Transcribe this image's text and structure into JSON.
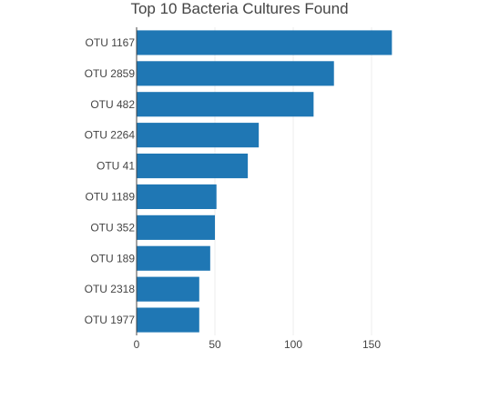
{
  "chart_data": {
    "type": "bar",
    "orientation": "horizontal",
    "title": "Top 10 Bacteria Cultures Found",
    "xlabel": "",
    "ylabel": "",
    "categories": [
      "OTU 1167",
      "OTU 2859",
      "OTU 482",
      "OTU 2264",
      "OTU 41",
      "OTU 1189",
      "OTU 352",
      "OTU 189",
      "OTU 2318",
      "OTU 1977"
    ],
    "values": [
      163,
      126,
      113,
      78,
      71,
      51,
      50,
      47,
      40,
      40
    ],
    "xlim": [
      0,
      170
    ],
    "x_ticks": [
      0,
      50,
      100,
      150
    ],
    "x_tick_labels": [
      "0",
      "50",
      "100",
      "150"
    ],
    "grid": "vertical",
    "bar_color": "#1f77b4"
  }
}
